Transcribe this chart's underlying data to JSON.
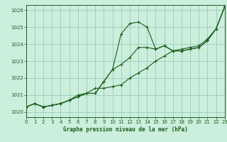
{
  "title": "Graphe pression niveau de la mer (hPa)",
  "bg_color": "#cceedd",
  "grid_color": "#99ccbb",
  "line_color": "#1a5e1a",
  "x_min": 0,
  "x_max": 23,
  "y_min": 1019.7,
  "y_max": 1026.3,
  "yticks": [
    1020,
    1021,
    1022,
    1023,
    1024,
    1025,
    1026
  ],
  "xticks": [
    0,
    1,
    2,
    3,
    4,
    5,
    6,
    7,
    8,
    9,
    10,
    11,
    12,
    13,
    14,
    15,
    16,
    17,
    18,
    19,
    20,
    21,
    22,
    23
  ],
  "line1_x": [
    0,
    1,
    2,
    3,
    4,
    5,
    6,
    7,
    8,
    9,
    10,
    11,
    12,
    13,
    14,
    15,
    16,
    17,
    18,
    19,
    20,
    21,
    22,
    23
  ],
  "line1_y": [
    1020.3,
    1020.5,
    1020.3,
    1020.4,
    1020.5,
    1020.7,
    1020.9,
    1021.1,
    1021.1,
    1021.8,
    1022.5,
    1024.6,
    1025.2,
    1025.3,
    1025.0,
    1023.7,
    1023.9,
    1023.6,
    1023.6,
    1023.7,
    1023.8,
    1024.2,
    1024.9,
    1026.2
  ],
  "line2_x": [
    0,
    1,
    2,
    3,
    4,
    5,
    6,
    7,
    8,
    9,
    10,
    11,
    12,
    13,
    14,
    15,
    16,
    17,
    18,
    19,
    20,
    21,
    22,
    23
  ],
  "line2_y": [
    1020.3,
    1020.5,
    1020.3,
    1020.4,
    1020.5,
    1020.7,
    1020.9,
    1021.1,
    1021.1,
    1021.8,
    1022.5,
    1022.8,
    1023.2,
    1023.8,
    1023.8,
    1023.7,
    1023.9,
    1023.6,
    1023.6,
    1023.7,
    1023.8,
    1024.2,
    1024.9,
    1026.2
  ],
  "line3_x": [
    0,
    1,
    2,
    3,
    4,
    5,
    6,
    7,
    8,
    9,
    10,
    11,
    12,
    13,
    14,
    15,
    16,
    17,
    18,
    19,
    20,
    21,
    22,
    23
  ],
  "line3_y": [
    1020.3,
    1020.5,
    1020.3,
    1020.4,
    1020.5,
    1020.7,
    1021.0,
    1021.1,
    1021.4,
    1021.4,
    1021.5,
    1021.6,
    1022.0,
    1022.3,
    1022.6,
    1023.0,
    1023.3,
    1023.6,
    1023.7,
    1023.8,
    1023.9,
    1024.3,
    1024.9,
    1026.2
  ]
}
